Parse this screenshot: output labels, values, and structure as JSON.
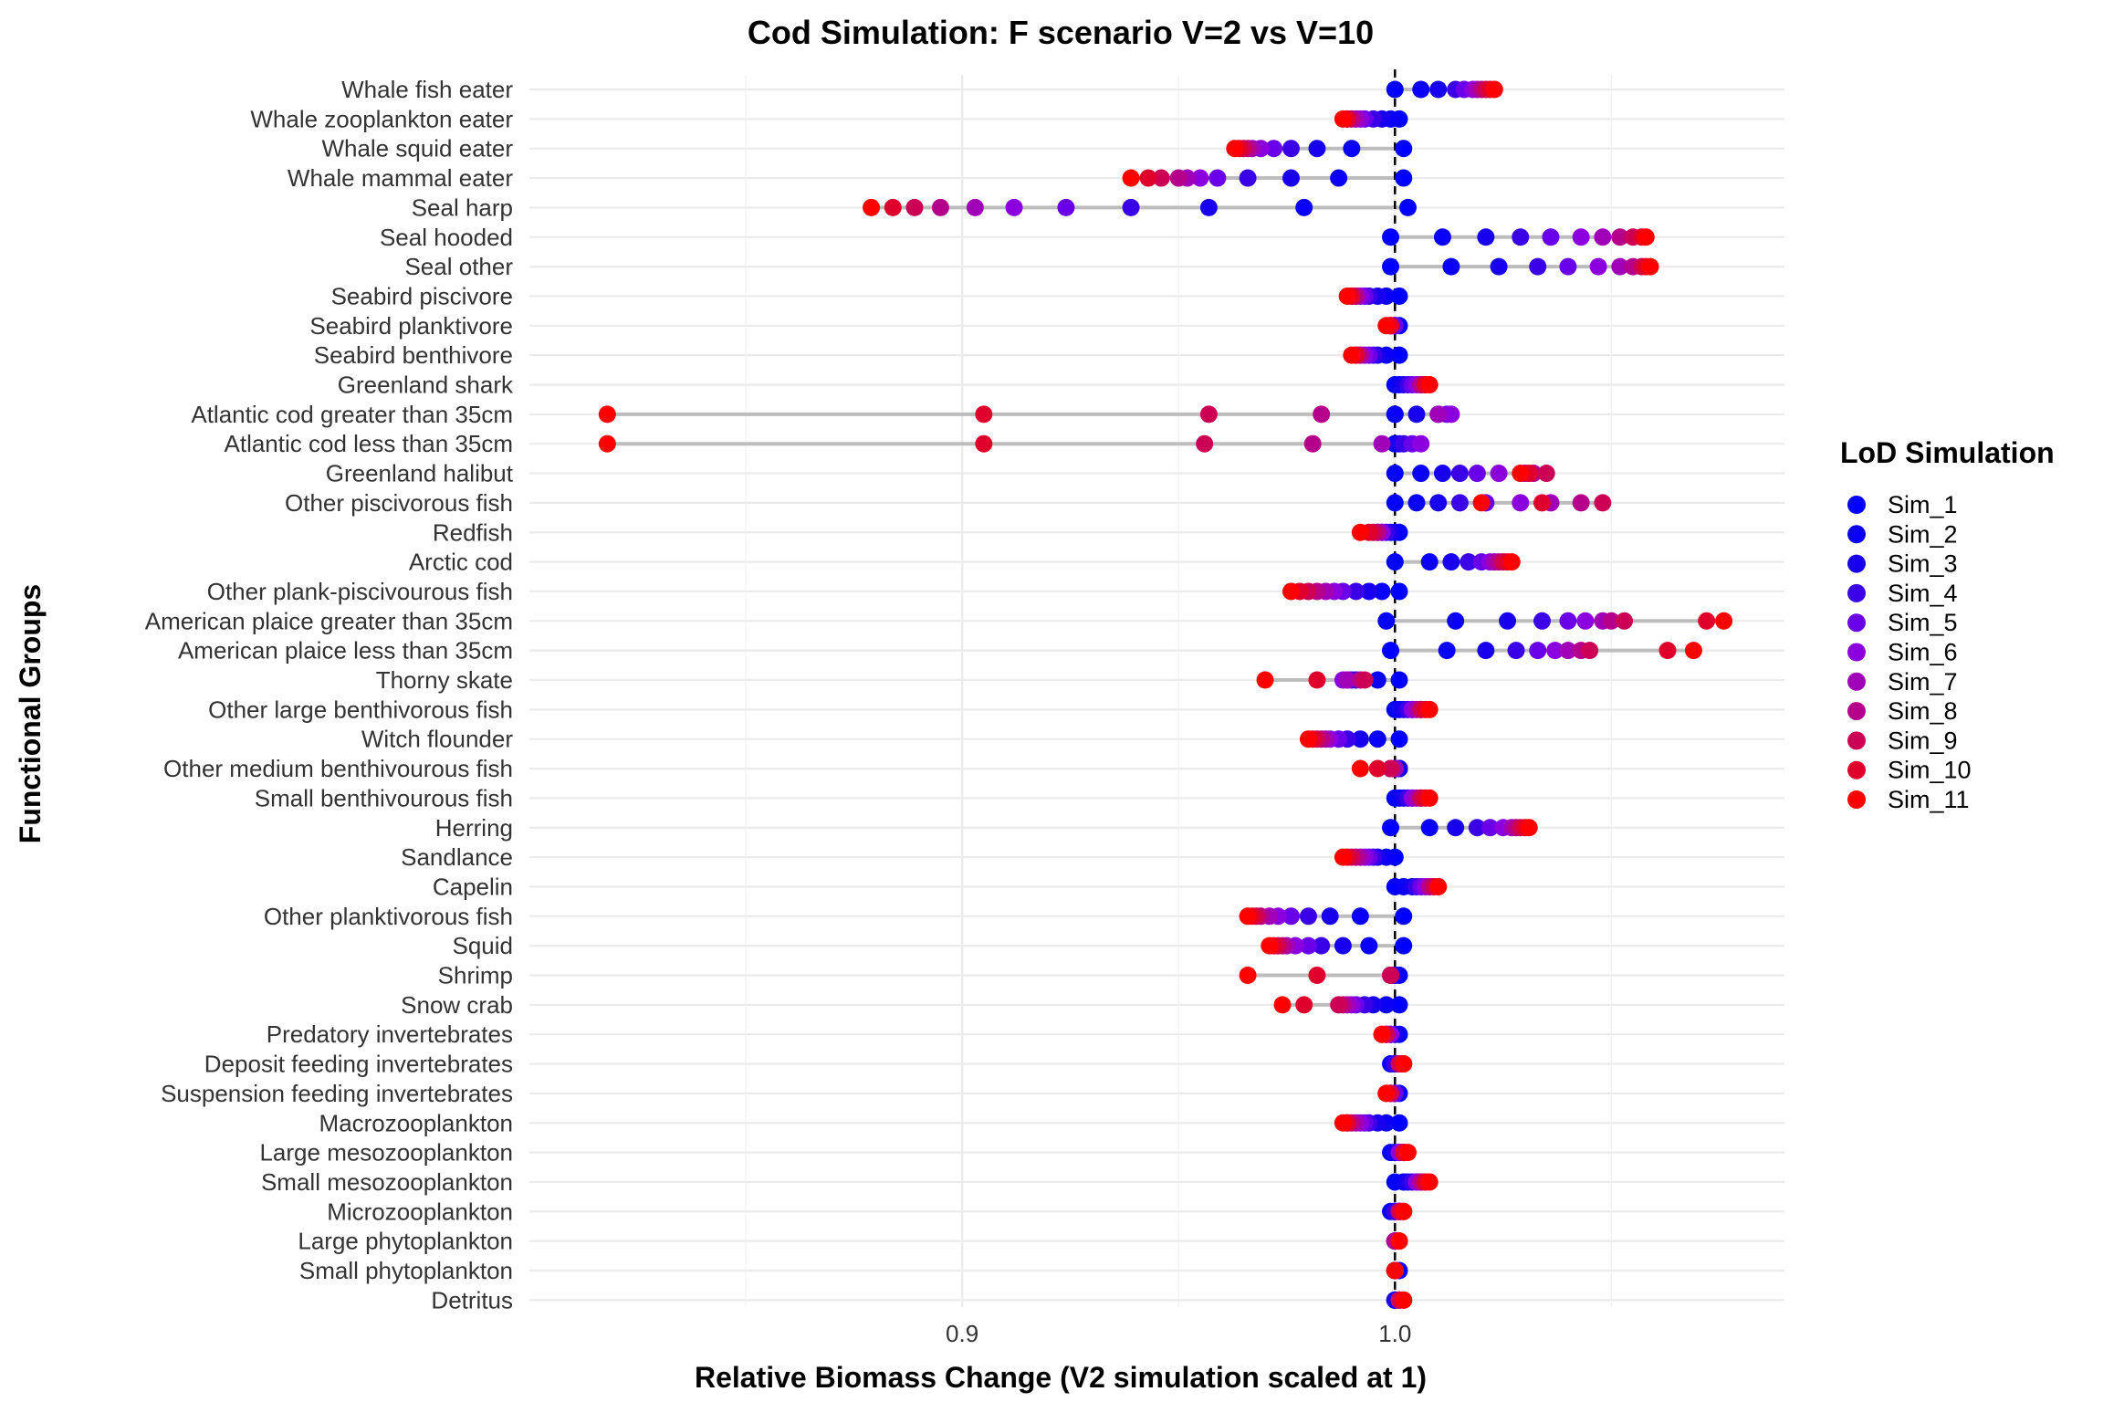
{
  "chart_data": {
    "type": "scatter",
    "title": "Cod Simulation: F scenario V=2 vs V=10",
    "xlabel": "Relative Biomass Change (V2 simulation scaled at 1)",
    "ylabel": "Functional Groups",
    "xlim": [
      0.8,
      1.09
    ],
    "x_ticks": [
      0.9,
      1.0
    ],
    "x_tick_labels": [
      "0.9",
      "1.0"
    ],
    "reference_line": {
      "x": 1.0,
      "style": "dashed"
    },
    "grid": true,
    "legend": {
      "title": "LoD Simulation",
      "position": "right"
    },
    "series_names": [
      "Sim_1",
      "Sim_2",
      "Sim_3",
      "Sim_4",
      "Sim_5",
      "Sim_6",
      "Sim_7",
      "Sim_8",
      "Sim_9",
      "Sim_10",
      "Sim_11"
    ],
    "series_colors": [
      "#0000ff",
      "#0a00f5",
      "#1800ef",
      "#3a00e8",
      "#6a00ea",
      "#8c00e0",
      "#a000b8",
      "#b4008a",
      "#cc0055",
      "#e0002c",
      "#ff0000"
    ],
    "categories": [
      "Whale fish eater",
      "Whale zooplankton eater",
      "Whale squid eater",
      "Whale mammal eater",
      "Seal harp",
      "Seal hooded",
      "Seal other",
      "Seabird piscivore",
      "Seabird planktivore",
      "Seabird benthivore",
      "Greenland shark",
      "Atlantic cod greater than 35cm",
      "Atlantic cod less than 35cm",
      "Greenland halibut",
      "Other piscivorous fish",
      "Redfish",
      "Arctic cod",
      "Other plank-piscivourous fish",
      "American plaice greater than 35cm",
      "American plaice less than 35cm",
      "Thorny skate",
      "Other large benthivorous fish",
      "Witch flounder",
      "Other medium benthivourous fish",
      "Small benthivourous fish",
      "Herring",
      "Sandlance",
      "Capelin",
      "Other planktivorous fish",
      "Squid",
      "Shrimp",
      "Snow crab",
      "Predatory invertebrates",
      "Deposit feeding invertebrates",
      "Suspension feeding invertebrates",
      "Macrozooplankton",
      "Large mesozooplankton",
      "Small mesozooplankton",
      "Microzooplankton",
      "Large phytoplankton",
      "Small phytoplankton",
      "Detritus"
    ],
    "values": [
      [
        1.0,
        1.006,
        1.01,
        1.014,
        1.016,
        1.018,
        1.019,
        1.02,
        1.021,
        1.022,
        1.023
      ],
      [
        1.001,
        0.999,
        0.997,
        0.995,
        0.993,
        0.992,
        0.991,
        0.99,
        0.989,
        0.989,
        0.988
      ],
      [
        1.002,
        0.99,
        0.982,
        0.976,
        0.972,
        0.969,
        0.967,
        0.966,
        0.965,
        0.964,
        0.963
      ],
      [
        1.002,
        0.987,
        0.976,
        0.966,
        0.959,
        0.955,
        0.952,
        0.95,
        0.946,
        0.943,
        0.939
      ],
      [
        1.003,
        0.979,
        0.957,
        0.939,
        0.924,
        0.912,
        0.903,
        0.895,
        0.889,
        0.884,
        0.879
      ],
      [
        0.999,
        1.011,
        1.021,
        1.029,
        1.036,
        1.043,
        1.048,
        1.052,
        1.055,
        1.057,
        1.058
      ],
      [
        0.999,
        1.013,
        1.024,
        1.033,
        1.04,
        1.047,
        1.052,
        1.055,
        1.057,
        1.058,
        1.059
      ],
      [
        1.001,
        0.998,
        0.996,
        0.994,
        0.993,
        0.992,
        0.991,
        0.991,
        0.99,
        0.99,
        0.989
      ],
      [
        1.001,
        1.0,
        1.0,
        1.0,
        1.0,
        0.999,
        0.999,
        0.999,
        0.999,
        0.999,
        0.998
      ],
      [
        1.001,
        0.998,
        0.996,
        0.995,
        0.994,
        0.993,
        0.992,
        0.992,
        0.991,
        0.991,
        0.99
      ],
      [
        1.0,
        1.001,
        1.002,
        1.003,
        1.004,
        1.005,
        1.006,
        1.006,
        1.007,
        1.007,
        1.008
      ],
      [
        1.0,
        1.0,
        1.005,
        1.01,
        1.012,
        1.013,
        1.01,
        0.983,
        0.957,
        0.905,
        0.818
      ],
      [
        1.0,
        1.0,
        1.001,
        1.002,
        1.004,
        1.006,
        0.997,
        0.981,
        0.956,
        0.905,
        0.818
      ],
      [
        1.0,
        1.006,
        1.011,
        1.015,
        1.019,
        1.024,
        1.03,
        1.032,
        1.035,
        1.031,
        1.029
      ],
      [
        1.0,
        1.005,
        1.01,
        1.015,
        1.021,
        1.029,
        1.036,
        1.043,
        1.048,
        1.034,
        1.02
      ],
      [
        1.001,
        1.0,
        0.999,
        0.998,
        0.997,
        0.997,
        0.996,
        0.996,
        0.995,
        0.994,
        0.992
      ],
      [
        1.0,
        1.008,
        1.013,
        1.017,
        1.02,
        1.022,
        1.023,
        1.024,
        1.025,
        1.026,
        1.027
      ],
      [
        1.001,
        0.997,
        0.994,
        0.991,
        0.988,
        0.986,
        0.984,
        0.982,
        0.98,
        0.978,
        0.976
      ],
      [
        0.998,
        1.014,
        1.026,
        1.034,
        1.04,
        1.044,
        1.048,
        1.05,
        1.053,
        1.072,
        1.076
      ],
      [
        0.999,
        1.012,
        1.021,
        1.028,
        1.033,
        1.037,
        1.04,
        1.043,
        1.045,
        1.063,
        1.069
      ],
      [
        1.001,
        0.996,
        0.991,
        0.99,
        0.989,
        0.988,
        0.989,
        0.992,
        0.993,
        0.982,
        0.97
      ],
      [
        1.0,
        1.001,
        1.002,
        1.003,
        1.004,
        1.004,
        1.005,
        1.006,
        1.006,
        1.007,
        1.008
      ],
      [
        1.001,
        0.996,
        0.992,
        0.989,
        0.987,
        0.985,
        0.984,
        0.983,
        0.982,
        0.981,
        0.98
      ],
      [
        1.001,
        1.001,
        1.001,
        1.0,
        1.0,
        1.0,
        1.0,
        0.999,
        0.999,
        0.996,
        0.992
      ],
      [
        1.0,
        1.001,
        1.002,
        1.003,
        1.004,
        1.004,
        1.005,
        1.006,
        1.006,
        1.007,
        1.008
      ],
      [
        0.999,
        1.008,
        1.014,
        1.019,
        1.022,
        1.025,
        1.027,
        1.028,
        1.029,
        1.03,
        1.031
      ],
      [
        1.0,
        0.998,
        0.996,
        0.995,
        0.994,
        0.993,
        0.992,
        0.991,
        0.99,
        0.989,
        0.988
      ],
      [
        1.0,
        1.002,
        1.004,
        1.005,
        1.006,
        1.007,
        1.008,
        1.008,
        1.009,
        1.01,
        1.01
      ],
      [
        1.002,
        0.992,
        0.985,
        0.98,
        0.976,
        0.973,
        0.971,
        0.969,
        0.968,
        0.967,
        0.966
      ],
      [
        1.002,
        0.994,
        0.988,
        0.983,
        0.98,
        0.977,
        0.975,
        0.974,
        0.973,
        0.972,
        0.971
      ],
      [
        1.001,
        1.0,
        1.0,
        0.999,
        0.999,
        0.999,
        0.999,
        0.999,
        0.999,
        0.982,
        0.966
      ],
      [
        1.001,
        0.998,
        0.995,
        0.993,
        0.991,
        0.99,
        0.989,
        0.988,
        0.987,
        0.979,
        0.974
      ],
      [
        1.001,
        1.0,
        1.0,
        0.999,
        0.999,
        0.999,
        0.998,
        0.998,
        0.998,
        0.997,
        0.997
      ],
      [
        0.999,
        1.0,
        1.0,
        1.0,
        1.001,
        1.001,
        1.001,
        1.001,
        1.001,
        1.002,
        1.002
      ],
      [
        1.001,
        1.0,
        1.0,
        1.0,
        1.0,
        0.999,
        0.999,
        0.999,
        0.999,
        0.998,
        0.998
      ],
      [
        1.001,
        0.998,
        0.996,
        0.994,
        0.993,
        0.992,
        0.991,
        0.99,
        0.989,
        0.989,
        0.988
      ],
      [
        0.999,
        1.0,
        1.0,
        1.001,
        1.001,
        1.001,
        1.002,
        1.002,
        1.002,
        1.002,
        1.003
      ],
      [
        1.0,
        1.002,
        1.003,
        1.004,
        1.005,
        1.005,
        1.006,
        1.006,
        1.007,
        1.007,
        1.008
      ],
      [
        0.999,
        1.0,
        1.0,
        1.0,
        1.001,
        1.001,
        1.001,
        1.001,
        1.001,
        1.002,
        1.002
      ],
      [
        1.0,
        1.0,
        1.0,
        1.0,
        1.0,
        1.0,
        1.0,
        1.0,
        1.001,
        1.001,
        1.001
      ],
      [
        1.001,
        1.0,
        1.0,
        1.0,
        1.0,
        1.0,
        1.0,
        1.0,
        1.0,
        1.0,
        1.0
      ],
      [
        1.0,
        1.0,
        1.0,
        1.001,
        1.001,
        1.001,
        1.001,
        1.001,
        1.001,
        1.002,
        1.002
      ]
    ]
  }
}
